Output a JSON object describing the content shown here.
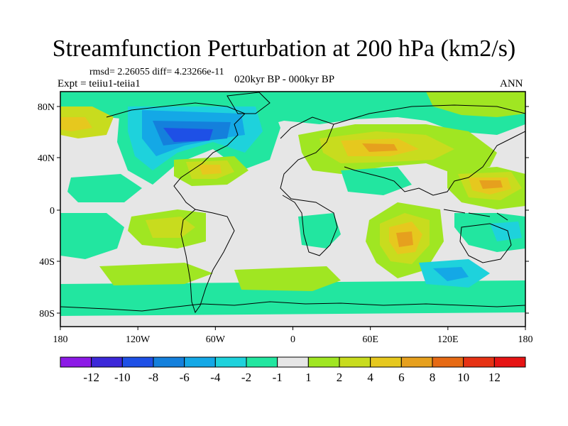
{
  "title": "Streamfunction Perturbation at 200 hPa (km2/s)",
  "stats_line": "rmsd= 2.26055 diff= 4.23266e-11",
  "experiment_line": "Expt = teiiu1-teiia1",
  "period_line": "020kyr BP - 000kyr BP",
  "season_label": "ANN",
  "lat_labels": [
    "80N",
    "40N",
    "0",
    "40S",
    "80S"
  ],
  "lon_labels": [
    "180",
    "120W",
    "60W",
    "0",
    "60E",
    "120E",
    "180"
  ],
  "colorbar": {
    "labels": [
      "-12",
      "-10",
      "-8",
      "-6",
      "-4",
      "-2",
      "-1",
      "1",
      "2",
      "4",
      "6",
      "8",
      "10",
      "12"
    ],
    "colors": [
      "#8c1ae6",
      "#3c28d9",
      "#1e50e6",
      "#1480dc",
      "#14a8e6",
      "#1ed2dc",
      "#22e6a0",
      "#e6e6e6",
      "#a0e622",
      "#c8dc1e",
      "#e6c81e",
      "#e6a01e",
      "#e66a14",
      "#e63214",
      "#e61414"
    ]
  }
}
